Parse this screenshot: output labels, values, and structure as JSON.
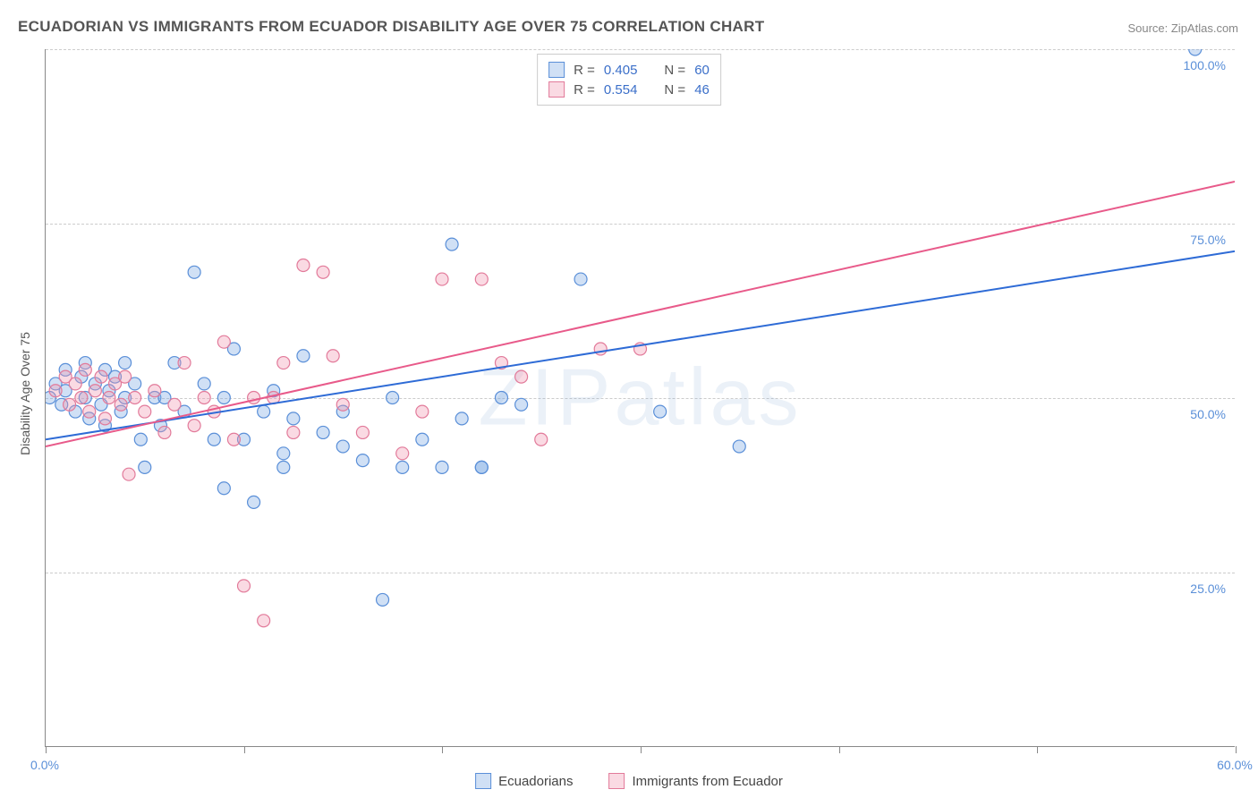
{
  "title": "ECUADORIAN VS IMMIGRANTS FROM ECUADOR DISABILITY AGE OVER 75 CORRELATION CHART",
  "source": "Source: ZipAtlas.com",
  "watermark": "ZIPatlas",
  "y_axis_title": "Disability Age Over 75",
  "chart": {
    "type": "scatter",
    "xlim": [
      0,
      60
    ],
    "ylim": [
      0,
      100
    ],
    "x_ticks": [
      0,
      10,
      20,
      30,
      40,
      50,
      60
    ],
    "y_ticks": [
      25,
      50,
      75,
      100
    ],
    "x_tick_labels": {
      "0": "0.0%",
      "60": "60.0%"
    },
    "y_tick_labels": {
      "25": "25.0%",
      "50": "50.0%",
      "75": "75.0%",
      "100": "100.0%"
    },
    "background_color": "#ffffff",
    "grid_color": "#cccccc",
    "axis_color": "#888888",
    "marker_radius": 7,
    "marker_stroke_width": 1.2,
    "trend_line_width": 2,
    "series": [
      {
        "name": "Ecuadorians",
        "fill": "rgba(120,165,225,0.35)",
        "stroke": "#5a8fd8",
        "trend_color": "#2e6bd6",
        "R": "0.405",
        "N": "60",
        "trend": {
          "x1": 0,
          "y1": 44,
          "x2": 60,
          "y2": 71
        },
        "points": [
          [
            0.2,
            50
          ],
          [
            0.5,
            52
          ],
          [
            0.8,
            49
          ],
          [
            1,
            54
          ],
          [
            1,
            51
          ],
          [
            1.5,
            48
          ],
          [
            1.8,
            53
          ],
          [
            2,
            50
          ],
          [
            2,
            55
          ],
          [
            2.2,
            47
          ],
          [
            2.5,
            52
          ],
          [
            2.8,
            49
          ],
          [
            3,
            54
          ],
          [
            3,
            46
          ],
          [
            3.2,
            51
          ],
          [
            3.5,
            53
          ],
          [
            3.8,
            48
          ],
          [
            4,
            55
          ],
          [
            4,
            50
          ],
          [
            4.5,
            52
          ],
          [
            4.8,
            44
          ],
          [
            5,
            40
          ],
          [
            5.5,
            50
          ],
          [
            5.8,
            46
          ],
          [
            6,
            50
          ],
          [
            6.5,
            55
          ],
          [
            7,
            48
          ],
          [
            7.5,
            68
          ],
          [
            8,
            52
          ],
          [
            8.5,
            44
          ],
          [
            9,
            37
          ],
          [
            9,
            50
          ],
          [
            9.5,
            57
          ],
          [
            10,
            44
          ],
          [
            10.5,
            35
          ],
          [
            11,
            48
          ],
          [
            11.5,
            51
          ],
          [
            12,
            42
          ],
          [
            12,
            40
          ],
          [
            12.5,
            47
          ],
          [
            13,
            56
          ],
          [
            14,
            45
          ],
          [
            15,
            43
          ],
          [
            15,
            48
          ],
          [
            16,
            41
          ],
          [
            17,
            21
          ],
          [
            17.5,
            50
          ],
          [
            18,
            40
          ],
          [
            19,
            44
          ],
          [
            20,
            40
          ],
          [
            20.5,
            72
          ],
          [
            21,
            47
          ],
          [
            22,
            40
          ],
          [
            22,
            40
          ],
          [
            23,
            50
          ],
          [
            24,
            49
          ],
          [
            27,
            67
          ],
          [
            31,
            48
          ],
          [
            35,
            43
          ],
          [
            58,
            100
          ]
        ]
      },
      {
        "name": "Immigrants from Ecuador",
        "fill": "rgba(240,150,175,0.35)",
        "stroke": "#e27a9a",
        "trend_color": "#e85a8a",
        "R": "0.554",
        "N": "46",
        "trend": {
          "x1": 0,
          "y1": 43,
          "x2": 60,
          "y2": 81
        },
        "points": [
          [
            0.5,
            51
          ],
          [
            1,
            53
          ],
          [
            1.2,
            49
          ],
          [
            1.5,
            52
          ],
          [
            1.8,
            50
          ],
          [
            2,
            54
          ],
          [
            2.2,
            48
          ],
          [
            2.5,
            51
          ],
          [
            2.8,
            53
          ],
          [
            3,
            47
          ],
          [
            3.2,
            50
          ],
          [
            3.5,
            52
          ],
          [
            3.8,
            49
          ],
          [
            4,
            53
          ],
          [
            4.2,
            39
          ],
          [
            4.5,
            50
          ],
          [
            5,
            48
          ],
          [
            5.5,
            51
          ],
          [
            6,
            45
          ],
          [
            6.5,
            49
          ],
          [
            7,
            55
          ],
          [
            7.5,
            46
          ],
          [
            8,
            50
          ],
          [
            8.5,
            48
          ],
          [
            9,
            58
          ],
          [
            9.5,
            44
          ],
          [
            10,
            23
          ],
          [
            10.5,
            50
          ],
          [
            11,
            18
          ],
          [
            11.5,
            50
          ],
          [
            12,
            55
          ],
          [
            12.5,
            45
          ],
          [
            13,
            69
          ],
          [
            14,
            68
          ],
          [
            14.5,
            56
          ],
          [
            15,
            49
          ],
          [
            16,
            45
          ],
          [
            18,
            42
          ],
          [
            19,
            48
          ],
          [
            20,
            67
          ],
          [
            22,
            67
          ],
          [
            23,
            55
          ],
          [
            24,
            53
          ],
          [
            25,
            44
          ],
          [
            28,
            57
          ],
          [
            30,
            57
          ]
        ]
      }
    ]
  },
  "stats_legend": {
    "r_label": "R =",
    "n_label": "N ="
  },
  "bottom_legend": {
    "label1": "Ecuadorians",
    "label2": "Immigrants from Ecuador"
  }
}
